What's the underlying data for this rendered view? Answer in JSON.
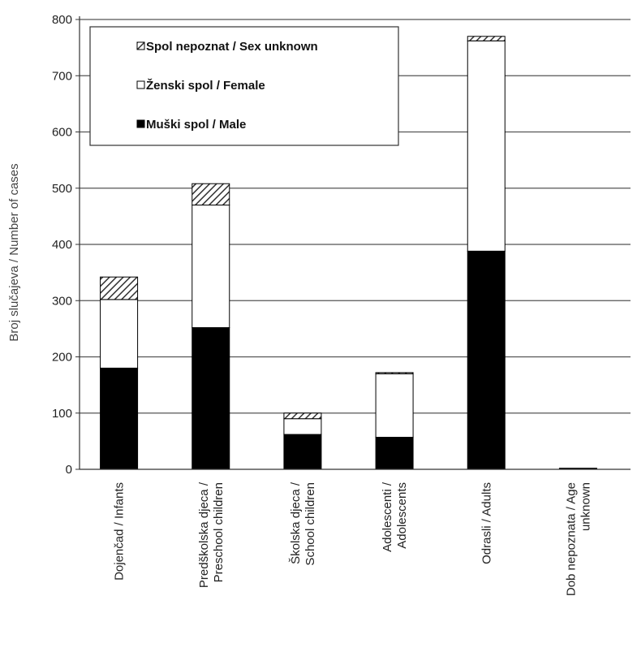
{
  "chart_data": {
    "type": "bar",
    "stacked": true,
    "ylabel": "Broj slučajeva  / Number  of cases",
    "ylim": [
      0,
      800
    ],
    "yticks": [
      0,
      100,
      200,
      300,
      400,
      500,
      600,
      700,
      800
    ],
    "grid": true,
    "legend_position": "top-left",
    "categories": [
      [
        "Dojenčad / Infants"
      ],
      [
        "Predškolska djeca /",
        "Preschool children"
      ],
      [
        "Školska djeca /",
        "School children"
      ],
      [
        "Adolescenti /",
        "Adolescents"
      ],
      [
        "Odrasli / Adults"
      ],
      [
        "Dob nepoznata /  Age",
        "unknown"
      ]
    ],
    "series": [
      {
        "name": "Muški spol / Male",
        "values": [
          180,
          252,
          62,
          57,
          388,
          2
        ],
        "color": "#000000",
        "pattern": "solid"
      },
      {
        "name": "Ženski spol / Female",
        "values": [
          122,
          218,
          28,
          113,
          374,
          0
        ],
        "color": "#ffffff",
        "pattern": "white"
      },
      {
        "name": "Spol nepoznat / Sex unknown",
        "values": [
          40,
          38,
          10,
          2,
          8,
          0
        ],
        "color": "#ffffff",
        "pattern": "hatch"
      }
    ],
    "legend_order": [
      2,
      1,
      0
    ]
  }
}
